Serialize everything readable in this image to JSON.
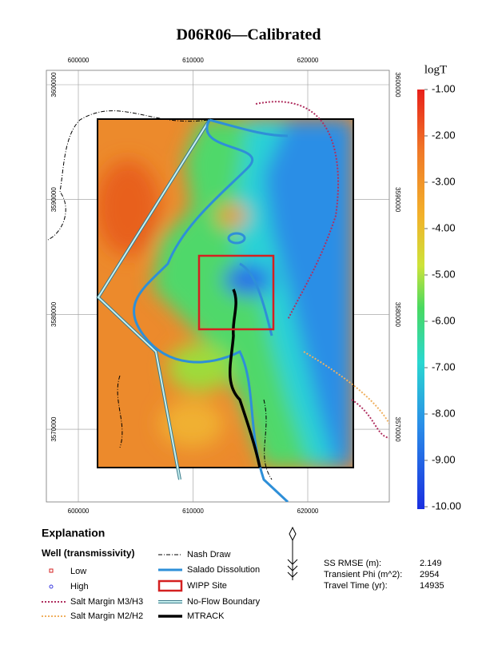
{
  "title": "D06R06—Calibrated",
  "map": {
    "xticks": [
      600000,
      610000,
      620000
    ],
    "yticks": [
      3600000,
      3590000,
      3580000,
      3570000
    ]
  },
  "colorbar": {
    "title": "logT",
    "ticks": [
      {
        "value": -1,
        "label": "-1.00"
      },
      {
        "value": -2,
        "label": "-2.00"
      },
      {
        "value": -3,
        "label": "-3.00"
      },
      {
        "value": -4,
        "label": "-4.00"
      },
      {
        "value": -5,
        "label": "-5.00"
      },
      {
        "value": -6,
        "label": "-6.00"
      },
      {
        "value": -7,
        "label": "-7.00"
      },
      {
        "value": -8,
        "label": "-8.00"
      },
      {
        "value": -9,
        "label": "-9.00"
      },
      {
        "value": -10,
        "label": "-10.00"
      }
    ]
  },
  "legend": {
    "heading": "Explanation",
    "subheading": "Well (transmissivity)",
    "items": [
      "Low",
      "High",
      "Salt Margin M3/H3",
      "Salt Margin M2/H2",
      "Nash Draw",
      "Salado Dissolution",
      "WIPP Site",
      "No-Flow Boundary",
      "MTRACK"
    ]
  },
  "stats": [
    {
      "label": "SS RMSE (m):",
      "value": 2.149
    },
    {
      "label": "Transient Phi (m^2):",
      "value": 2954
    },
    {
      "label": "Travel Time (yr):",
      "value": 14935
    }
  ]
}
